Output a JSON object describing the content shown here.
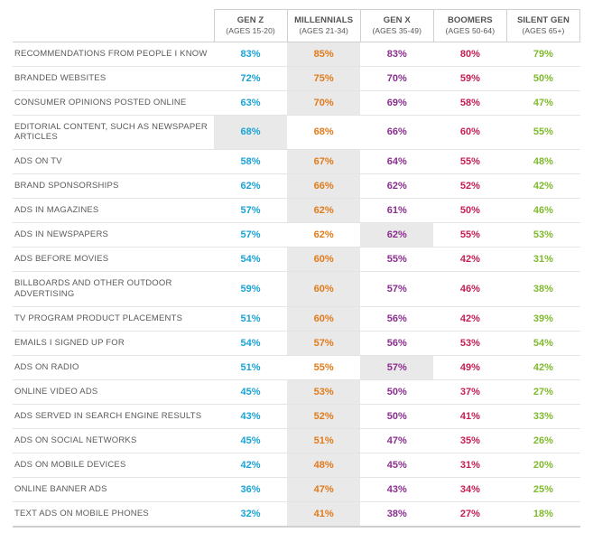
{
  "table": {
    "type": "table",
    "background_color": "#ffffff",
    "highlight_color": "#e9e9e9",
    "border_color": "#d0d0d0",
    "row_border_color": "#e4e4e4",
    "header_text_color": "#545454",
    "rowlabel_text_color": "#5a5a5a",
    "header_fontsize": 9.5,
    "rowlabel_fontsize": 9.5,
    "cell_fontsize": 11,
    "column_colors": [
      "#1aa3d4",
      "#e07b1a",
      "#8a2e8f",
      "#c51e52",
      "#7fba2c"
    ],
    "columns": [
      {
        "title": "GEN Z",
        "subtitle": "(AGES 15-20)"
      },
      {
        "title": "MILLENNIALS",
        "subtitle": "(AGES 21-34)"
      },
      {
        "title": "GEN X",
        "subtitle": "(AGES 35-49)"
      },
      {
        "title": "BOOMERS",
        "subtitle": "(AGES 50-64)"
      },
      {
        "title": "SILENT GEN",
        "subtitle": "(AGES 65+)"
      }
    ],
    "rows": [
      {
        "label": "RECOMMENDATIONS FROM PEOPLE I KNOW",
        "values": [
          "83%",
          "85%",
          "83%",
          "80%",
          "79%"
        ],
        "highlight": 1
      },
      {
        "label": "BRANDED WEBSITES",
        "values": [
          "72%",
          "75%",
          "70%",
          "59%",
          "50%"
        ],
        "highlight": 1
      },
      {
        "label": "CONSUMER OPINIONS POSTED ONLINE",
        "values": [
          "63%",
          "70%",
          "69%",
          "58%",
          "47%"
        ],
        "highlight": 1
      },
      {
        "label": "EDITORIAL CONTENT, SUCH AS NEWSPAPER ARTICLES",
        "values": [
          "68%",
          "68%",
          "66%",
          "60%",
          "55%"
        ],
        "highlight": 0
      },
      {
        "label": "ADS ON TV",
        "values": [
          "58%",
          "67%",
          "64%",
          "55%",
          "48%"
        ],
        "highlight": 1
      },
      {
        "label": "BRAND SPONSORSHIPS",
        "values": [
          "62%",
          "66%",
          "62%",
          "52%",
          "42%"
        ],
        "highlight": 1
      },
      {
        "label": "ADS IN MAGAZINES",
        "values": [
          "57%",
          "62%",
          "61%",
          "50%",
          "46%"
        ],
        "highlight": 1
      },
      {
        "label": "ADS IN NEWSPAPERS",
        "values": [
          "57%",
          "62%",
          "62%",
          "55%",
          "53%"
        ],
        "highlight": 2
      },
      {
        "label": "ADS BEFORE MOVIES",
        "values": [
          "54%",
          "60%",
          "55%",
          "42%",
          "31%"
        ],
        "highlight": 1
      },
      {
        "label": "BILLBOARDS AND OTHER OUTDOOR ADVERTISING",
        "values": [
          "59%",
          "60%",
          "57%",
          "46%",
          "38%"
        ],
        "highlight": 1
      },
      {
        "label": "TV PROGRAM PRODUCT PLACEMENTS",
        "values": [
          "51%",
          "60%",
          "56%",
          "42%",
          "39%"
        ],
        "highlight": 1
      },
      {
        "label": "EMAILS I SIGNED UP FOR",
        "values": [
          "54%",
          "57%",
          "56%",
          "53%",
          "54%"
        ],
        "highlight": 1
      },
      {
        "label": "ADS ON RADIO",
        "values": [
          "51%",
          "55%",
          "57%",
          "49%",
          "42%"
        ],
        "highlight": 2
      },
      {
        "label": "ONLINE VIDEO ADS",
        "values": [
          "45%",
          "53%",
          "50%",
          "37%",
          "27%"
        ],
        "highlight": 1
      },
      {
        "label": "ADS SERVED IN SEARCH ENGINE RESULTS",
        "values": [
          "43%",
          "52%",
          "50%",
          "41%",
          "33%"
        ],
        "highlight": 1
      },
      {
        "label": "ADS ON SOCIAL NETWORKS",
        "values": [
          "45%",
          "51%",
          "47%",
          "35%",
          "26%"
        ],
        "highlight": 1
      },
      {
        "label": "ADS ON MOBILE DEVICES",
        "values": [
          "42%",
          "48%",
          "45%",
          "31%",
          "20%"
        ],
        "highlight": 1
      },
      {
        "label": "ONLINE BANNER ADS",
        "values": [
          "36%",
          "47%",
          "43%",
          "34%",
          "25%"
        ],
        "highlight": 1
      },
      {
        "label": "TEXT ADS ON MOBILE PHONES",
        "values": [
          "32%",
          "41%",
          "38%",
          "27%",
          "18%"
        ],
        "highlight": 1
      }
    ]
  }
}
